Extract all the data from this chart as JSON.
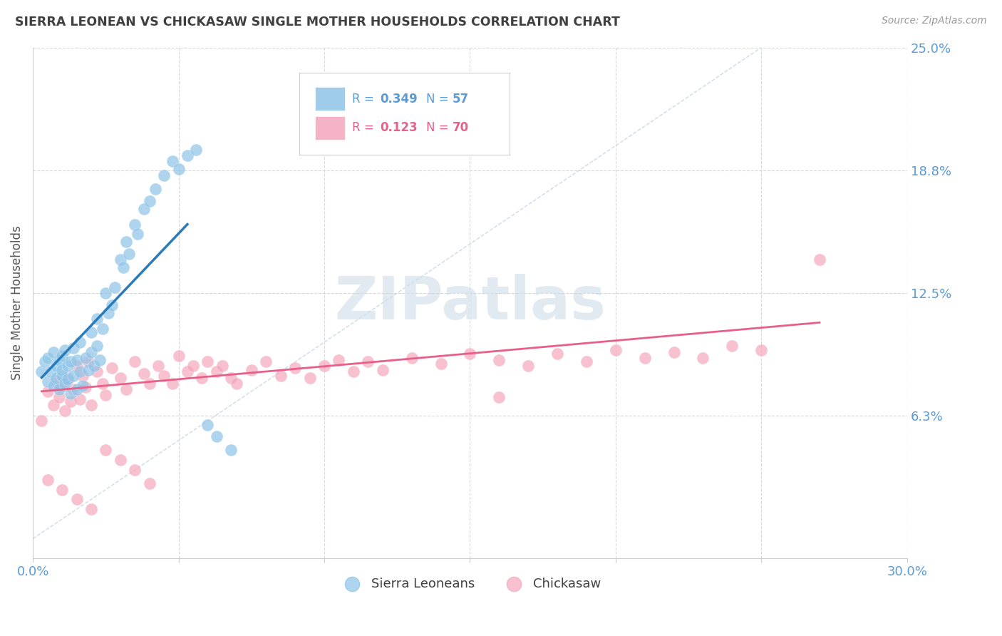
{
  "title": "SIERRA LEONEAN VS CHICKASAW SINGLE MOTHER HOUSEHOLDS CORRELATION CHART",
  "source": "Source: ZipAtlas.com",
  "ylabel": "Single Mother Households",
  "xmin": 0.0,
  "xmax": 0.3,
  "ymin": -0.01,
  "ymax": 0.25,
  "yticks": [
    0.0625,
    0.125,
    0.1875,
    0.25
  ],
  "ytick_labels": [
    "6.3%",
    "12.5%",
    "18.8%",
    "25.0%"
  ],
  "xticks": [
    0.0,
    0.05,
    0.1,
    0.15,
    0.2,
    0.25,
    0.3
  ],
  "xtick_labels": [
    "0.0%",
    "",
    "",
    "",
    "",
    "",
    "30.0%"
  ],
  "color_blue": "#8ec4e8",
  "color_pink": "#f4a7bb",
  "color_line_blue": "#2b7bba",
  "color_line_pink": "#e8608a",
  "color_diag": "#c8d8e8",
  "color_axis_label": "#5b9bd5",
  "color_title": "#404040",
  "color_source": "#999999",
  "color_grid": "#d8d8d8",
  "watermark": "ZIPatlas",
  "watermark_color": "#d0dde8",
  "sierra_x": [
    0.003,
    0.004,
    0.005,
    0.005,
    0.006,
    0.007,
    0.007,
    0.008,
    0.008,
    0.009,
    0.009,
    0.01,
    0.01,
    0.01,
    0.011,
    0.011,
    0.012,
    0.012,
    0.013,
    0.013,
    0.014,
    0.014,
    0.015,
    0.015,
    0.016,
    0.016,
    0.017,
    0.018,
    0.019,
    0.02,
    0.02,
    0.021,
    0.022,
    0.022,
    0.023,
    0.024,
    0.025,
    0.026,
    0.027,
    0.028,
    0.03,
    0.031,
    0.032,
    0.033,
    0.035,
    0.036,
    0.038,
    0.04,
    0.042,
    0.045,
    0.048,
    0.05,
    0.053,
    0.056,
    0.06,
    0.063,
    0.068
  ],
  "sierra_y": [
    0.085,
    0.09,
    0.08,
    0.092,
    0.085,
    0.078,
    0.095,
    0.082,
    0.088,
    0.076,
    0.091,
    0.083,
    0.086,
    0.093,
    0.079,
    0.096,
    0.081,
    0.088,
    0.074,
    0.09,
    0.083,
    0.097,
    0.076,
    0.091,
    0.085,
    0.1,
    0.078,
    0.092,
    0.086,
    0.095,
    0.105,
    0.088,
    0.112,
    0.098,
    0.091,
    0.107,
    0.125,
    0.115,
    0.119,
    0.128,
    0.142,
    0.138,
    0.151,
    0.145,
    0.16,
    0.155,
    0.168,
    0.172,
    0.178,
    0.185,
    0.192,
    0.188,
    0.195,
    0.198,
    0.058,
    0.052,
    0.045
  ],
  "chickasaw_x": [
    0.003,
    0.005,
    0.007,
    0.008,
    0.009,
    0.01,
    0.011,
    0.012,
    0.013,
    0.014,
    0.015,
    0.016,
    0.017,
    0.018,
    0.019,
    0.02,
    0.022,
    0.024,
    0.025,
    0.027,
    0.03,
    0.032,
    0.035,
    0.038,
    0.04,
    0.043,
    0.045,
    0.048,
    0.05,
    0.053,
    0.055,
    0.058,
    0.06,
    0.063,
    0.065,
    0.068,
    0.07,
    0.075,
    0.08,
    0.085,
    0.09,
    0.095,
    0.1,
    0.105,
    0.11,
    0.115,
    0.12,
    0.13,
    0.14,
    0.15,
    0.16,
    0.17,
    0.18,
    0.19,
    0.2,
    0.21,
    0.22,
    0.23,
    0.24,
    0.25,
    0.005,
    0.01,
    0.015,
    0.02,
    0.025,
    0.03,
    0.035,
    0.04,
    0.27,
    0.16
  ],
  "chickasaw_y": [
    0.06,
    0.075,
    0.068,
    0.08,
    0.072,
    0.078,
    0.065,
    0.082,
    0.07,
    0.076,
    0.088,
    0.071,
    0.083,
    0.077,
    0.09,
    0.068,
    0.085,
    0.079,
    0.073,
    0.087,
    0.082,
    0.076,
    0.09,
    0.084,
    0.079,
    0.088,
    0.083,
    0.079,
    0.093,
    0.085,
    0.088,
    0.082,
    0.09,
    0.085,
    0.088,
    0.082,
    0.079,
    0.086,
    0.09,
    0.083,
    0.087,
    0.082,
    0.088,
    0.091,
    0.085,
    0.09,
    0.086,
    0.092,
    0.089,
    0.094,
    0.091,
    0.088,
    0.094,
    0.09,
    0.096,
    0.092,
    0.095,
    0.092,
    0.098,
    0.096,
    0.03,
    0.025,
    0.02,
    0.015,
    0.045,
    0.04,
    0.035,
    0.028,
    0.142,
    0.072
  ],
  "sierra_line_x": [
    0.003,
    0.053
  ],
  "sierra_line_y": [
    0.082,
    0.16
  ],
  "chickasaw_line_x": [
    0.003,
    0.27
  ],
  "chickasaw_line_y": [
    0.075,
    0.11
  ]
}
